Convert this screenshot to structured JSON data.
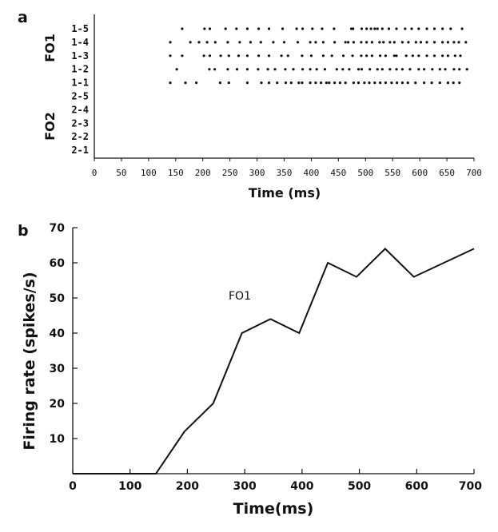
{
  "panel_a": {
    "label": "a"
  },
  "panel_b": {
    "label": "b"
  },
  "chart_data": [
    {
      "type": "scatter",
      "subtype": "raster",
      "title": "",
      "xlabel": "Time (ms)",
      "ylabel": "",
      "xlim": [
        0,
        700
      ],
      "x_ticks": [
        0,
        50,
        100,
        150,
        200,
        250,
        300,
        350,
        400,
        450,
        500,
        550,
        600,
        650,
        700
      ],
      "groups": [
        {
          "name": "FO1",
          "rows": [
            "1-5",
            "1-4",
            "1-3",
            "1-2",
            "1-1"
          ]
        },
        {
          "name": "FO2",
          "rows": [
            "2-5",
            "2-4",
            "2-3",
            "2-2",
            "2-1"
          ]
        }
      ],
      "rows": [
        "1-5",
        "1-4",
        "1-3",
        "1-2",
        "1-1",
        "2-5",
        "2-4",
        "2-3",
        "2-2",
        "2-1"
      ],
      "spikes": {
        "1-5": [
          162,
          203,
          213,
          242,
          262,
          282,
          303,
          322,
          347,
          373,
          384,
          402,
          420,
          442,
          474,
          477,
          493,
          502,
          510,
          517,
          522,
          531,
          543,
          557,
          573,
          585,
          598,
          613,
          627,
          642,
          657,
          678
        ],
        "1-4": [
          140,
          177,
          193,
          208,
          223,
          246,
          268,
          288,
          307,
          330,
          350,
          375,
          398,
          408,
          422,
          443,
          463,
          468,
          478,
          492,
          502,
          512,
          526,
          533,
          545,
          553,
          568,
          579,
          593,
          602,
          613,
          627,
          642,
          652,
          663,
          672,
          685
        ],
        "1-3": [
          140,
          162,
          202,
          213,
          233,
          248,
          266,
          282,
          303,
          322,
          345,
          357,
          383,
          400,
          422,
          438,
          459,
          476,
          492,
          502,
          512,
          527,
          537,
          553,
          557,
          575,
          587,
          598,
          613,
          627,
          642,
          652,
          665,
          675
        ],
        "1-2": [
          152,
          212,
          222,
          246,
          263,
          282,
          302,
          320,
          333,
          352,
          367,
          384,
          398,
          410,
          425,
          447,
          458,
          470,
          487,
          493,
          508,
          522,
          531,
          545,
          557,
          568,
          582,
          598,
          608,
          623,
          637,
          647,
          663,
          673,
          687
        ],
        "1-1": [
          140,
          168,
          188,
          232,
          248,
          282,
          308,
          322,
          337,
          353,
          363,
          377,
          383,
          398,
          408,
          418,
          428,
          433,
          443,
          453,
          463,
          478,
          487,
          498,
          507,
          517,
          527,
          537,
          548,
          558,
          568,
          578,
          592,
          608,
          622,
          637,
          652,
          662,
          673
        ],
        "2-5": [],
        "2-4": [],
        "2-3": [],
        "2-2": [],
        "2-1": []
      }
    },
    {
      "type": "line",
      "title": "",
      "xlabel": "Time(ms)",
      "ylabel": "Firing rate (spikes/s)",
      "xlim": [
        0,
        700
      ],
      "ylim": [
        0,
        70
      ],
      "x_ticks": [
        0,
        100,
        200,
        300,
        400,
        500,
        600,
        700
      ],
      "x_tick_labels": [
        "0",
        "100",
        "200",
        "300",
        "400",
        "500",
        "600",
        "700"
      ],
      "y_ticks": [
        10,
        20,
        30,
        40,
        50,
        60,
        70
      ],
      "series": [
        {
          "name": "FO1",
          "x": [
            0,
            145,
            195,
            245,
            295,
            345,
            395,
            445,
            495,
            545,
            595,
            700
          ],
          "y": [
            0,
            0,
            12,
            20,
            40,
            44,
            40,
            60,
            56,
            64,
            56,
            64
          ]
        }
      ],
      "annotations": [
        {
          "text": "FO1"
        }
      ]
    }
  ]
}
